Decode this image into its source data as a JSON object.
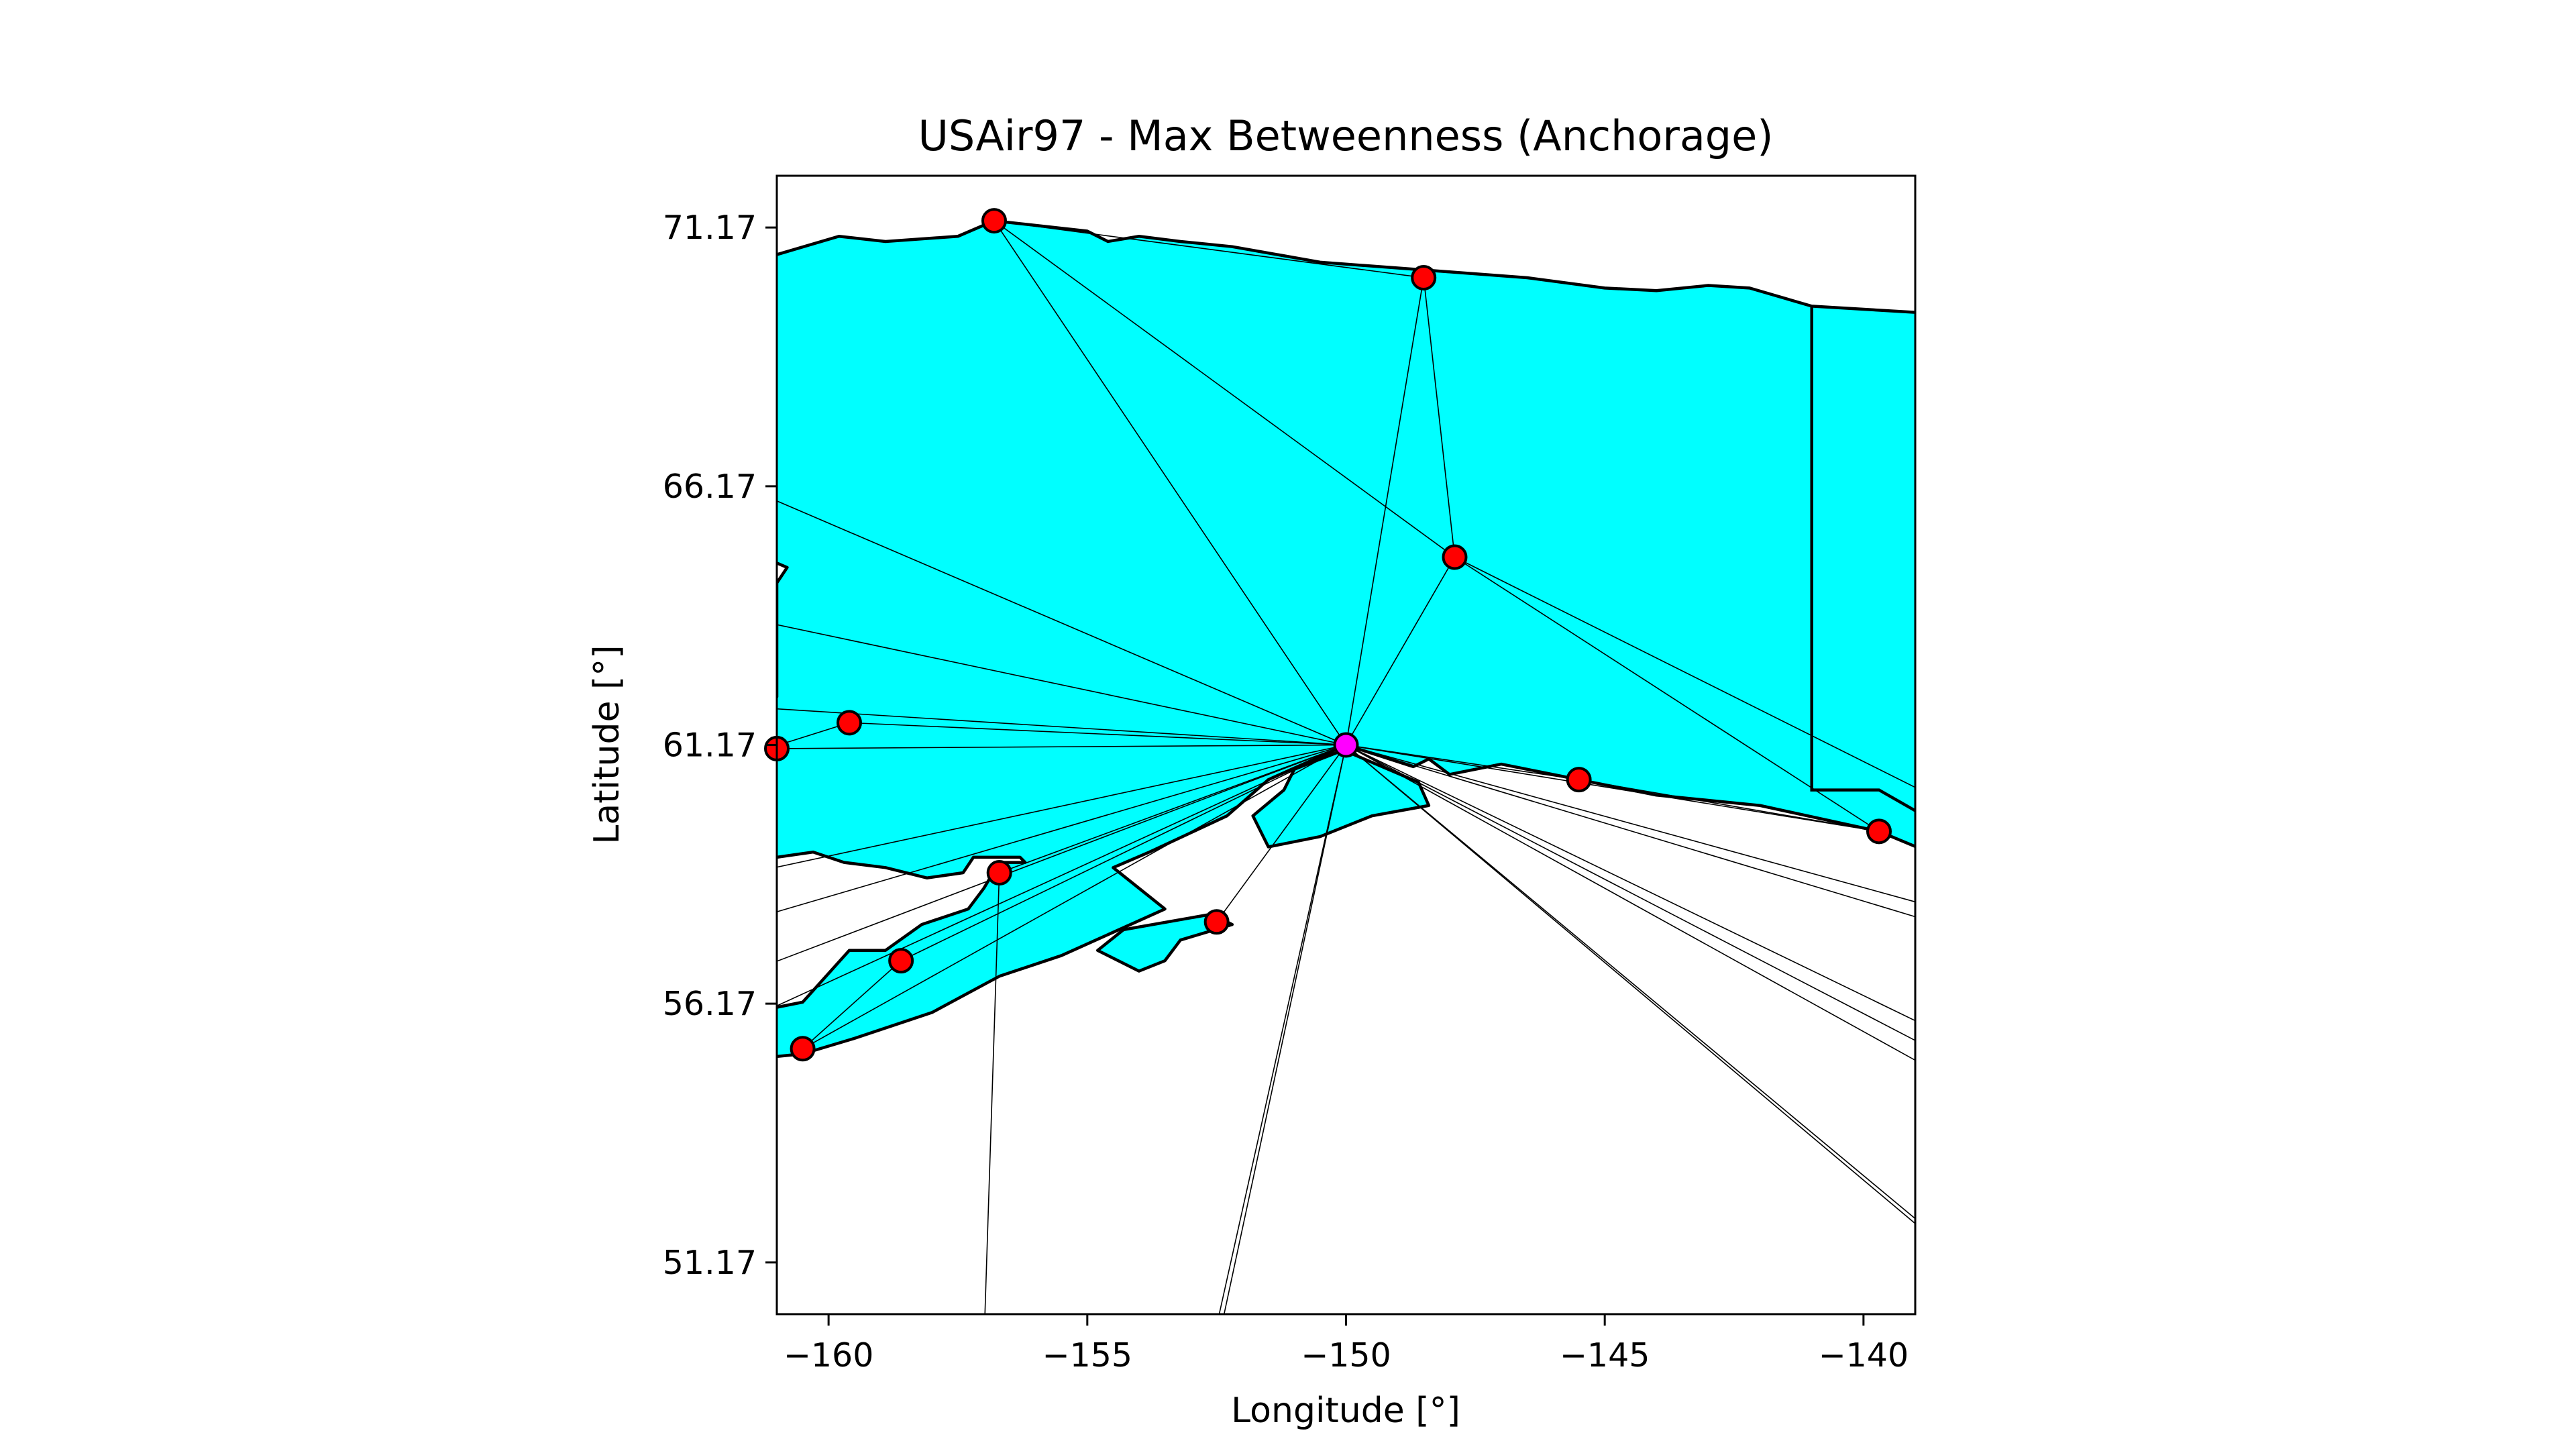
{
  "figure": {
    "title": "USAir97 - Max Betweenness (Anchorage)",
    "xlabel": "Longitude [°]",
    "ylabel": "Latitude [°]",
    "xlim": [
      -161,
      -139
    ],
    "ylim": [
      50.17,
      72.17
    ],
    "xticks": [
      {
        "value": -160,
        "label": "−160"
      },
      {
        "value": -155,
        "label": "−155"
      },
      {
        "value": -150,
        "label": "−150"
      },
      {
        "value": -145,
        "label": "−145"
      },
      {
        "value": -140,
        "label": "−140"
      }
    ],
    "yticks": [
      {
        "value": 51.17,
        "label": "51.17"
      },
      {
        "value": 56.17,
        "label": "56.17"
      },
      {
        "value": 61.17,
        "label": "61.17"
      },
      {
        "value": 66.17,
        "label": "66.17"
      },
      {
        "value": 71.17,
        "label": "71.17"
      }
    ]
  },
  "colors": {
    "land": "#00ffff",
    "land_edge": "#000000",
    "airport": "#ff0000",
    "hub": "#ff00ff",
    "edge": "#000000"
  },
  "map_data": {
    "hub": {
      "name": "Anchorage",
      "lon": -150.0,
      "lat": 61.17
    },
    "airports": [
      {
        "lon": -156.8,
        "lat": 71.3
      },
      {
        "lon": -148.5,
        "lat": 70.2
      },
      {
        "lon": -147.9,
        "lat": 64.8
      },
      {
        "lon": -159.6,
        "lat": 61.6
      },
      {
        "lon": -161.0,
        "lat": 61.1
      },
      {
        "lon": -145.5,
        "lat": 60.5
      },
      {
        "lon": -139.7,
        "lat": 59.5
      },
      {
        "lon": -156.7,
        "lat": 58.7
      },
      {
        "lon": -152.5,
        "lat": 57.75
      },
      {
        "lon": -158.6,
        "lat": 57.0
      },
      {
        "lon": -160.5,
        "lat": 55.3
      }
    ],
    "hub_routes": [
      {
        "lon": -156.8,
        "lat": 71.3
      },
      {
        "lon": -148.5,
        "lat": 70.2
      },
      {
        "lon": -147.9,
        "lat": 64.8
      },
      {
        "lon": -159.6,
        "lat": 61.6
      },
      {
        "lon": -161.0,
        "lat": 61.1
      },
      {
        "lon": -145.5,
        "lat": 60.5
      },
      {
        "lon": -139.7,
        "lat": 59.5
      },
      {
        "lon": -156.7,
        "lat": 58.7
      },
      {
        "lon": -152.5,
        "lat": 57.75
      },
      {
        "lon": -158.6,
        "lat": 57.0
      },
      {
        "lon": -160.5,
        "lat": 55.3
      },
      {
        "lon": -161.5,
        "lat": 66.1
      },
      {
        "lon": -161.5,
        "lat": 63.6
      },
      {
        "lon": -161.5,
        "lat": 61.9
      },
      {
        "lon": -161.5,
        "lat": 58.7
      },
      {
        "lon": -161.5,
        "lat": 57.8
      },
      {
        "lon": -161.5,
        "lat": 56.8
      },
      {
        "lon": -161.5,
        "lat": 55.9
      },
      {
        "lon": -152.6,
        "lat": 49.5
      },
      {
        "lon": -152.5,
        "lat": 49.5
      },
      {
        "lon": -138.5,
        "lat": 58.0
      },
      {
        "lon": -138.5,
        "lat": 57.7
      },
      {
        "lon": -138.5,
        "lat": 55.6
      },
      {
        "lon": -138.5,
        "lat": 55.2
      },
      {
        "lon": -138.5,
        "lat": 54.8
      },
      {
        "lon": -138.5,
        "lat": 51.6
      },
      {
        "lon": -138.5,
        "lat": 51.5
      }
    ],
    "other_routes": [
      [
        {
          "lon": -156.8,
          "lat": 71.3
        },
        {
          "lon": -147.9,
          "lat": 64.8
        }
      ],
      [
        {
          "lon": -156.8,
          "lat": 71.3
        },
        {
          "lon": -148.5,
          "lat": 70.2
        }
      ],
      [
        {
          "lon": -148.5,
          "lat": 70.2
        },
        {
          "lon": -147.9,
          "lat": 64.8
        }
      ],
      [
        {
          "lon": -147.9,
          "lat": 64.8
        },
        {
          "lon": -139.7,
          "lat": 59.5
        }
      ],
      [
        {
          "lon": -147.9,
          "lat": 64.8
        },
        {
          "lon": -138.5,
          "lat": 60.1
        }
      ],
      [
        {
          "lon": -145.5,
          "lat": 60.5
        },
        {
          "lon": -139.7,
          "lat": 59.5
        }
      ],
      [
        {
          "lon": -159.6,
          "lat": 61.6
        },
        {
          "lon": -161.5,
          "lat": 61.0
        }
      ],
      [
        {
          "lon": -156.7,
          "lat": 58.7
        },
        {
          "lon": -157.0,
          "lat": 49.5
        }
      ],
      [
        {
          "lon": -158.6,
          "lat": 57.0
        },
        {
          "lon": -160.5,
          "lat": 55.3
        }
      ]
    ],
    "land_polygons": [
      [
        [
          -161.5,
          70.5
        ],
        [
          -159.8,
          71.0
        ],
        [
          -158.9,
          70.9
        ],
        [
          -157.5,
          71.0
        ],
        [
          -156.8,
          71.3
        ],
        [
          -155.0,
          71.1
        ],
        [
          -154.6,
          70.9
        ],
        [
          -154.0,
          71.0
        ],
        [
          -153.2,
          70.9
        ],
        [
          -152.2,
          70.8
        ],
        [
          -150.5,
          70.5
        ],
        [
          -148.5,
          70.35
        ],
        [
          -146.5,
          70.2
        ],
        [
          -145.0,
          70.0
        ],
        [
          -144.0,
          69.95
        ],
        [
          -143.0,
          70.05
        ],
        [
          -142.2,
          70.0
        ],
        [
          -141.0,
          69.65
        ],
        [
          -138.5,
          69.5
        ],
        [
          -138.5,
          59.0
        ],
        [
          -139.7,
          59.5
        ],
        [
          -142.0,
          60.0
        ],
        [
          -144.0,
          60.2
        ],
        [
          -145.5,
          60.5
        ],
        [
          -147.0,
          60.8
        ],
        [
          -148.0,
          60.6
        ],
        [
          -148.4,
          60.9
        ],
        [
          -148.7,
          60.75
        ],
        [
          -150.0,
          61.17
        ],
        [
          -151.5,
          60.5
        ],
        [
          -152.3,
          59.8
        ],
        [
          -153.8,
          59.1
        ],
        [
          -154.5,
          58.8
        ],
        [
          -153.5,
          58.0
        ],
        [
          -155.5,
          57.1
        ],
        [
          -156.7,
          56.7
        ],
        [
          -158.0,
          56.0
        ],
        [
          -159.5,
          55.5
        ],
        [
          -160.5,
          55.2
        ],
        [
          -161.5,
          55.1
        ],
        [
          -161.5,
          56.0
        ],
        [
          -160.5,
          56.2
        ],
        [
          -159.6,
          57.2
        ],
        [
          -158.9,
          57.2
        ],
        [
          -158.2,
          57.7
        ],
        [
          -157.3,
          58.0
        ],
        [
          -157.0,
          58.4
        ],
        [
          -156.7,
          58.9
        ],
        [
          -156.2,
          58.9
        ],
        [
          -156.3,
          59.0
        ],
        [
          -157.2,
          59.0
        ],
        [
          -157.4,
          58.7
        ],
        [
          -158.1,
          58.6
        ],
        [
          -158.9,
          58.8
        ],
        [
          -159.7,
          58.9
        ],
        [
          -160.3,
          59.1
        ],
        [
          -161.0,
          59.0
        ],
        [
          -161.5,
          58.8
        ],
        [
          -161.5,
          62.5
        ],
        [
          -161.0,
          62.1
        ],
        [
          -161.0,
          62.8
        ],
        [
          -161.0,
          64.3
        ],
        [
          -160.8,
          64.6
        ],
        [
          -161.5,
          64.9
        ]
      ],
      [
        [
          -150.05,
          61.07
        ],
        [
          -148.6,
          60.45
        ],
        [
          -148.4,
          60.0
        ],
        [
          -149.5,
          59.8
        ],
        [
          -150.5,
          59.4
        ],
        [
          -151.5,
          59.2
        ],
        [
          -151.8,
          59.8
        ],
        [
          -151.2,
          60.3
        ],
        [
          -151.0,
          60.7
        ]
      ],
      [
        [
          -153.2,
          57.4
        ],
        [
          -152.2,
          57.7
        ],
        [
          -152.6,
          57.9
        ],
        [
          -154.3,
          57.6
        ],
        [
          -154.8,
          57.2
        ],
        [
          -154.0,
          56.8
        ],
        [
          -153.5,
          57.0
        ]
      ]
    ],
    "border": [
      {
        "lon": -141.0,
        "lat": 69.65
      },
      {
        "lon": -141.0,
        "lat": 60.3
      },
      {
        "lon": -139.7,
        "lat": 60.3
      },
      {
        "lon": -139.0,
        "lat": 59.9
      }
    ]
  }
}
